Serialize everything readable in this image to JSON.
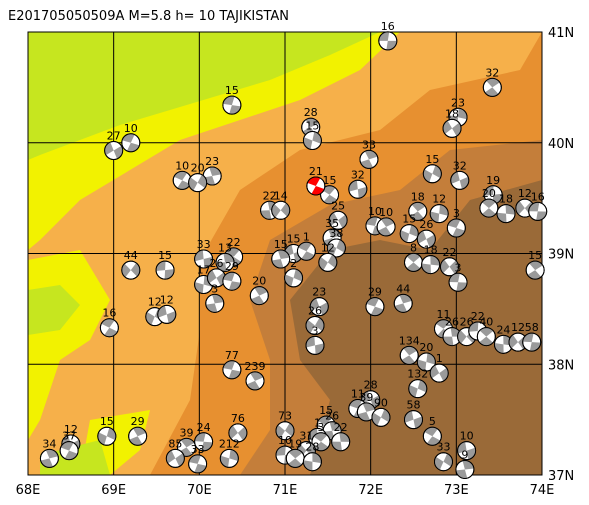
{
  "title": "E201705050509A  M=5.8  h=  10  TAJIKISTAN",
  "lon_labels": [
    "68E",
    "69E",
    "70E",
    "71E",
    "72E",
    "73E",
    "74E"
  ],
  "lat_labels": [
    "41N",
    "40N",
    "39N",
    "38N",
    "37N"
  ],
  "lon_range": [
    68,
    74
  ],
  "lat_range": [
    37,
    41
  ],
  "colors": {
    "lowland_green": "#c6e61f",
    "yellow": "#f2f200",
    "light_orange": "#f6b04a",
    "orange": "#e79030",
    "mid_brown": "#c47e3a",
    "dark_brown": "#9a6a38",
    "main_event": "#ff0000",
    "grid": "#000000"
  },
  "main_event": {
    "lon": 71.36,
    "lat": 39.61,
    "label": "21"
  },
  "events": [
    {
      "lon": 72.2,
      "lat": 40.92,
      "label": "16"
    },
    {
      "lon": 73.42,
      "lat": 40.5,
      "label": "32"
    },
    {
      "lon": 73.02,
      "lat": 40.23,
      "label": "23"
    },
    {
      "lon": 72.95,
      "lat": 40.13,
      "label": "18"
    },
    {
      "lon": 70.38,
      "lat": 40.34,
      "label": "15"
    },
    {
      "lon": 71.3,
      "lat": 40.14,
      "label": "28"
    },
    {
      "lon": 71.32,
      "lat": 40.02,
      "label": "15"
    },
    {
      "lon": 69.0,
      "lat": 39.93,
      "label": "27"
    },
    {
      "lon": 69.2,
      "lat": 40.0,
      "label": "10"
    },
    {
      "lon": 71.98,
      "lat": 39.85,
      "label": "33"
    },
    {
      "lon": 72.72,
      "lat": 39.72,
      "label": "15"
    },
    {
      "lon": 73.04,
      "lat": 39.66,
      "label": "32"
    },
    {
      "lon": 69.8,
      "lat": 39.66,
      "label": "10"
    },
    {
      "lon": 70.15,
      "lat": 39.7,
      "label": "23"
    },
    {
      "lon": 69.98,
      "lat": 39.64,
      "label": "20"
    },
    {
      "lon": 71.85,
      "lat": 39.58,
      "label": "32"
    },
    {
      "lon": 71.52,
      "lat": 39.53,
      "label": "15"
    },
    {
      "lon": 70.82,
      "lat": 39.39,
      "label": "22"
    },
    {
      "lon": 70.95,
      "lat": 39.39,
      "label": "14"
    },
    {
      "lon": 73.43,
      "lat": 39.53,
      "label": "19"
    },
    {
      "lon": 73.38,
      "lat": 39.41,
      "label": "20"
    },
    {
      "lon": 73.58,
      "lat": 39.36,
      "label": "18"
    },
    {
      "lon": 73.8,
      "lat": 39.41,
      "label": "12"
    },
    {
      "lon": 73.95,
      "lat": 39.38,
      "label": "16"
    },
    {
      "lon": 72.55,
      "lat": 39.38,
      "label": "18"
    },
    {
      "lon": 72.8,
      "lat": 39.36,
      "label": "12"
    },
    {
      "lon": 71.62,
      "lat": 39.3,
      "label": "25"
    },
    {
      "lon": 72.05,
      "lat": 39.25,
      "label": "10"
    },
    {
      "lon": 72.18,
      "lat": 39.24,
      "label": "10"
    },
    {
      "lon": 72.45,
      "lat": 39.18,
      "label": "15"
    },
    {
      "lon": 72.65,
      "lat": 39.13,
      "label": "26"
    },
    {
      "lon": 73.0,
      "lat": 39.23,
      "label": "3"
    },
    {
      "lon": 71.55,
      "lat": 39.14,
      "label": "35"
    },
    {
      "lon": 71.6,
      "lat": 39.05,
      "label": "38"
    },
    {
      "lon": 71.1,
      "lat": 39.0,
      "label": "15"
    },
    {
      "lon": 71.25,
      "lat": 39.02,
      "label": "1"
    },
    {
      "lon": 70.95,
      "lat": 38.95,
      "label": "15"
    },
    {
      "lon": 71.5,
      "lat": 38.92,
      "label": "12"
    },
    {
      "lon": 70.05,
      "lat": 38.95,
      "label": "33"
    },
    {
      "lon": 70.4,
      "lat": 38.97,
      "label": "22"
    },
    {
      "lon": 70.3,
      "lat": 38.92,
      "label": "13"
    },
    {
      "lon": 69.2,
      "lat": 38.85,
      "label": "44"
    },
    {
      "lon": 69.6,
      "lat": 38.85,
      "label": "15"
    },
    {
      "lon": 72.5,
      "lat": 38.92,
      "label": "8"
    },
    {
      "lon": 72.7,
      "lat": 38.9,
      "label": "18"
    },
    {
      "lon": 72.92,
      "lat": 38.88,
      "label": "22"
    },
    {
      "lon": 73.02,
      "lat": 38.74,
      "label": "3"
    },
    {
      "lon": 73.92,
      "lat": 38.85,
      "label": "15"
    },
    {
      "lon": 70.05,
      "lat": 38.72,
      "label": "17"
    },
    {
      "lon": 70.2,
      "lat": 38.78,
      "label": "26"
    },
    {
      "lon": 70.38,
      "lat": 38.75,
      "label": "29"
    },
    {
      "lon": 70.7,
      "lat": 38.62,
      "label": "20"
    },
    {
      "lon": 71.1,
      "lat": 38.78,
      "label": "2"
    },
    {
      "lon": 71.4,
      "lat": 38.52,
      "label": "23"
    },
    {
      "lon": 72.05,
      "lat": 38.52,
      "label": "29"
    },
    {
      "lon": 72.38,
      "lat": 38.55,
      "label": "44"
    },
    {
      "lon": 69.48,
      "lat": 38.43,
      "label": "12"
    },
    {
      "lon": 69.62,
      "lat": 38.45,
      "label": "12"
    },
    {
      "lon": 68.95,
      "lat": 38.33,
      "label": "16"
    },
    {
      "lon": 70.18,
      "lat": 38.55,
      "label": "3"
    },
    {
      "lon": 71.35,
      "lat": 38.35,
      "label": "26"
    },
    {
      "lon": 71.35,
      "lat": 38.17,
      "label": "3"
    },
    {
      "lon": 72.85,
      "lat": 38.32,
      "label": "11"
    },
    {
      "lon": 72.95,
      "lat": 38.25,
      "label": "26"
    },
    {
      "lon": 73.12,
      "lat": 38.25,
      "label": "26"
    },
    {
      "lon": 73.25,
      "lat": 38.3,
      "label": "22"
    },
    {
      "lon": 73.35,
      "lat": 38.25,
      "label": "40"
    },
    {
      "lon": 73.55,
      "lat": 38.18,
      "label": "24"
    },
    {
      "lon": 73.72,
      "lat": 38.2,
      "label": "12"
    },
    {
      "lon": 73.88,
      "lat": 38.2,
      "label": "58"
    },
    {
      "lon": 72.45,
      "lat": 38.08,
      "label": "134"
    },
    {
      "lon": 72.65,
      "lat": 38.02,
      "label": "20"
    },
    {
      "lon": 72.8,
      "lat": 37.92,
      "label": "1"
    },
    {
      "lon": 70.38,
      "lat": 37.95,
      "label": "77"
    },
    {
      "lon": 70.65,
      "lat": 37.85,
      "label": "239"
    },
    {
      "lon": 72.55,
      "lat": 37.78,
      "label": "132"
    },
    {
      "lon": 72.0,
      "lat": 37.68,
      "label": "28"
    },
    {
      "lon": 71.85,
      "lat": 37.6,
      "label": "11"
    },
    {
      "lon": 71.95,
      "lat": 37.57,
      "label": "39"
    },
    {
      "lon": 72.12,
      "lat": 37.52,
      "label": "90"
    },
    {
      "lon": 72.5,
      "lat": 37.5,
      "label": "58"
    },
    {
      "lon": 71.48,
      "lat": 37.45,
      "label": "15"
    },
    {
      "lon": 71.55,
      "lat": 37.4,
      "label": "26"
    },
    {
      "lon": 71.0,
      "lat": 37.4,
      "label": "73"
    },
    {
      "lon": 71.38,
      "lat": 37.34,
      "label": "1"
    },
    {
      "lon": 71.42,
      "lat": 37.3,
      "label": "3"
    },
    {
      "lon": 71.65,
      "lat": 37.3,
      "label": "22"
    },
    {
      "lon": 71.25,
      "lat": 37.22,
      "label": "31"
    },
    {
      "lon": 71.0,
      "lat": 37.18,
      "label": "10"
    },
    {
      "lon": 71.12,
      "lat": 37.15,
      "label": "19"
    },
    {
      "lon": 71.32,
      "lat": 37.12,
      "label": "28"
    },
    {
      "lon": 70.45,
      "lat": 37.38,
      "label": "76"
    },
    {
      "lon": 70.05,
      "lat": 37.3,
      "label": "24"
    },
    {
      "lon": 69.85,
      "lat": 37.25,
      "label": "39"
    },
    {
      "lon": 70.35,
      "lat": 37.15,
      "label": "212"
    },
    {
      "lon": 69.72,
      "lat": 37.15,
      "label": "85"
    },
    {
      "lon": 69.98,
      "lat": 37.1,
      "label": "33"
    },
    {
      "lon": 69.28,
      "lat": 37.35,
      "label": "29"
    },
    {
      "lon": 68.92,
      "lat": 37.35,
      "label": "15"
    },
    {
      "lon": 68.5,
      "lat": 37.28,
      "label": "12"
    },
    {
      "lon": 68.48,
      "lat": 37.22,
      "label": "37"
    },
    {
      "lon": 68.25,
      "lat": 37.15,
      "label": "34"
    },
    {
      "lon": 72.85,
      "lat": 37.12,
      "label": "33"
    },
    {
      "lon": 73.12,
      "lat": 37.22,
      "label": "10"
    },
    {
      "lon": 72.72,
      "lat": 37.35,
      "label": "5"
    },
    {
      "lon": 73.1,
      "lat": 37.05,
      "label": "9"
    }
  ]
}
